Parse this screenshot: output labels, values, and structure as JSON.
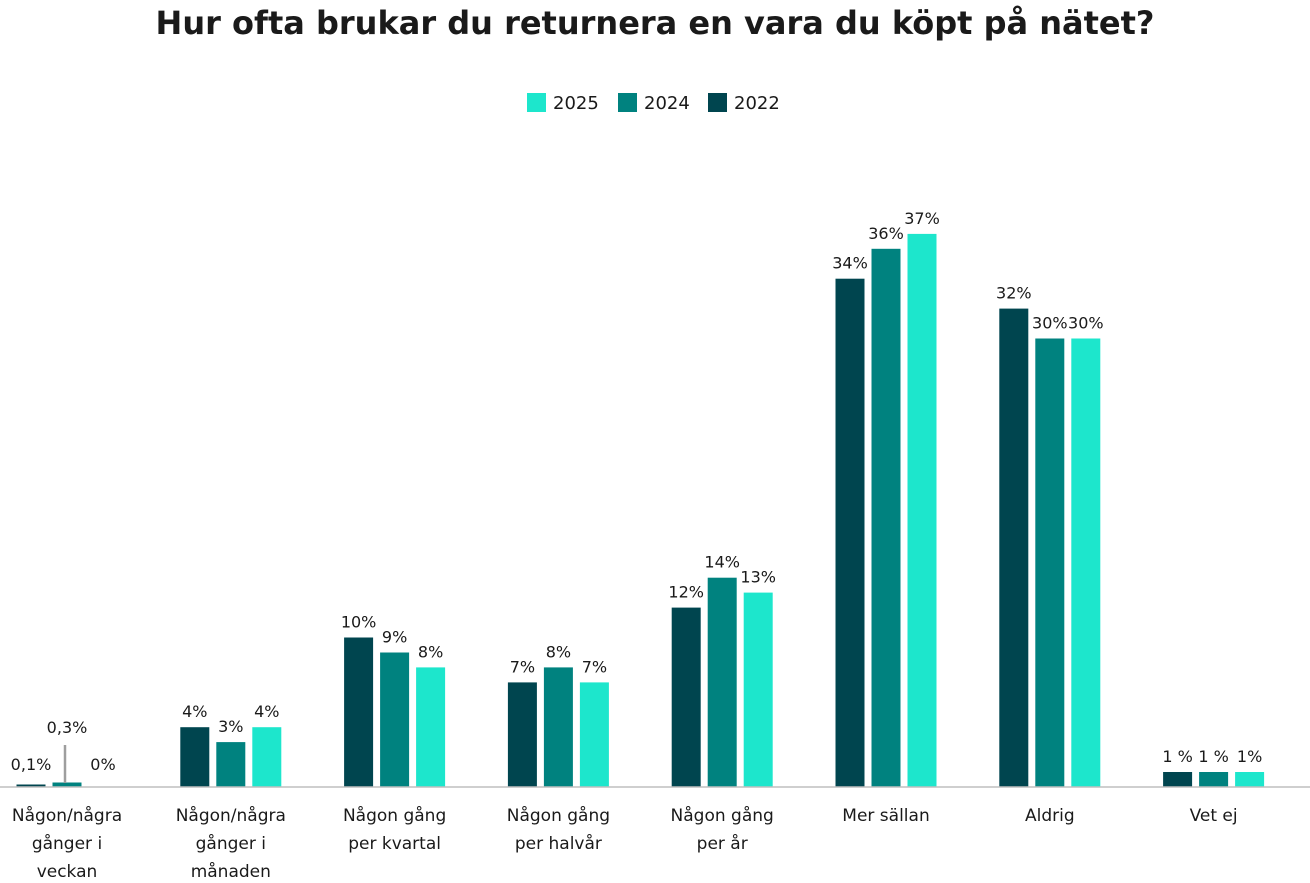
{
  "chart_data": {
    "type": "bar",
    "title": "Hur ofta brukar du returnera en vara du köpt på nätet?",
    "legend_position": "top-center",
    "legend_order": [
      "2025",
      "2024",
      "2022"
    ],
    "categories": [
      [
        "Någon/några",
        "gånger i",
        "veckan"
      ],
      [
        "Någon/några",
        "gånger i",
        "månaden"
      ],
      [
        "Någon gång",
        "per kvartal"
      ],
      [
        "Någon gång",
        "per halvår"
      ],
      [
        "Någon gång",
        "per år"
      ],
      [
        "Mer sällan"
      ],
      [
        "Aldrig"
      ],
      [
        "Vet ej"
      ]
    ],
    "series": [
      {
        "name": "2022",
        "color": "#00454f",
        "values": [
          0.1,
          4,
          10,
          7,
          12,
          34,
          32,
          1
        ],
        "labels": [
          "0,1%",
          "4%",
          "10%",
          "7%",
          "12%",
          "34%",
          "32%",
          "1 %"
        ]
      },
      {
        "name": "2024",
        "color": "#00827f",
        "values": [
          0.3,
          3,
          9,
          8,
          14,
          36,
          30,
          1
        ],
        "labels": [
          "0,3%",
          "3%",
          "9%",
          "8%",
          "14%",
          "36%",
          "30%",
          "1 %"
        ]
      },
      {
        "name": "2025",
        "color": "#1de6cc",
        "values": [
          0,
          4,
          8,
          7,
          13,
          37,
          30,
          1
        ],
        "labels": [
          "0%",
          "4%",
          "8%",
          "7%",
          "13%",
          "37%",
          "30%",
          "1%"
        ]
      }
    ],
    "ylim": [
      0,
      40
    ],
    "grid": false,
    "xlabel": "",
    "ylabel": ""
  }
}
